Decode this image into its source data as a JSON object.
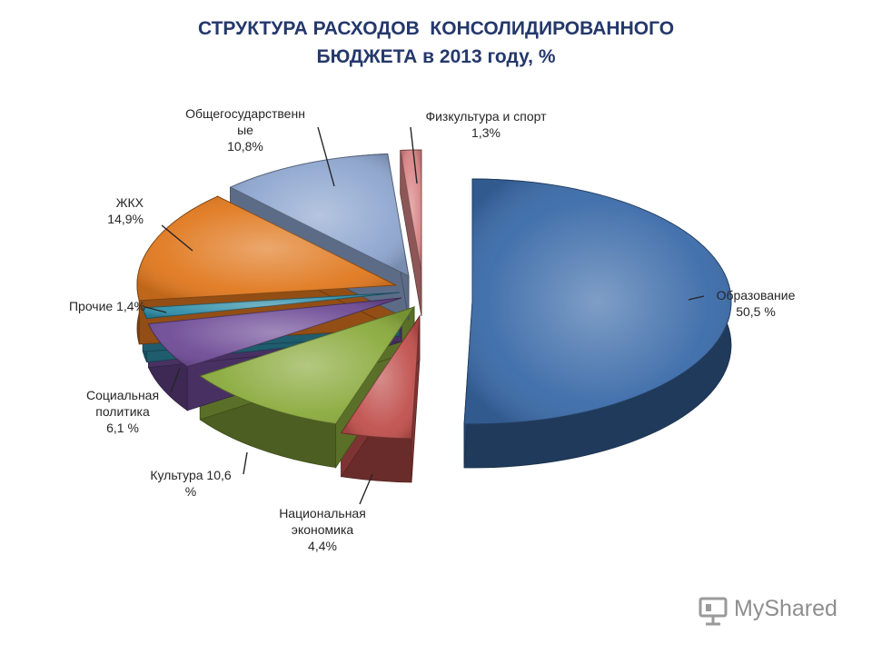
{
  "title": {
    "line1": "СТРУКТУРА РАСХОДОВ  КОНСОЛИДИРОВАННОГО",
    "line2": "БЮДЖЕТА в 2013 году, %"
  },
  "chart_data": {
    "type": "pie",
    "title": "СТРУКТУРА РАСХОДОВ  КОНСОЛИДИРОВАННОГО БЮДЖЕТА в 2013 году, %",
    "start_angle_deg": 270,
    "direction": "clockwise",
    "style": "3d-exploded",
    "slices": [
      {
        "key": "edu",
        "name": "Образование",
        "value": 50.5,
        "label_lines": [
          "Образование",
          "50,5 %"
        ],
        "color": "#3a6aa8"
      },
      {
        "key": "econ",
        "name": "Национальная экономика",
        "value": 4.4,
        "label_lines": [
          "Национальная",
          "экономика",
          "4,4%"
        ],
        "color": "#c0504d"
      },
      {
        "key": "cult",
        "name": "Культура",
        "value": 10.6,
        "label_lines": [
          "Культура  10,6",
          "%"
        ],
        "color": "#8aaa3c"
      },
      {
        "key": "soc",
        "name": "Социальная политика",
        "value": 6.1,
        "label_lines": [
          "Социальная",
          "политика",
          "6,1 %"
        ],
        "color": "#6e4b96"
      },
      {
        "key": "other",
        "name": "Прочие",
        "value": 1.4,
        "label_lines": [
          "Прочие 1,4%"
        ],
        "color": "#2f8ea8"
      },
      {
        "key": "zhkh",
        "name": "ЖКХ",
        "value": 14.9,
        "label_lines": [
          "ЖКХ",
          "14,9%"
        ],
        "color": "#e0781e"
      },
      {
        "key": "gov",
        "name": "Общегосударственные",
        "value": 10.8,
        "label_lines": [
          "Общегосударственн",
          "ые",
          "10,8%"
        ],
        "color": "#8ea6cf"
      },
      {
        "key": "sport",
        "name": "Физкультура и спорт",
        "value": 1.3,
        "label_lines": [
          "Физкультура  и спорт",
          "1,3%"
        ],
        "color": "#d98586"
      }
    ]
  },
  "watermark": {
    "text": "MyShared",
    "icon": "projector-screen-icon"
  }
}
